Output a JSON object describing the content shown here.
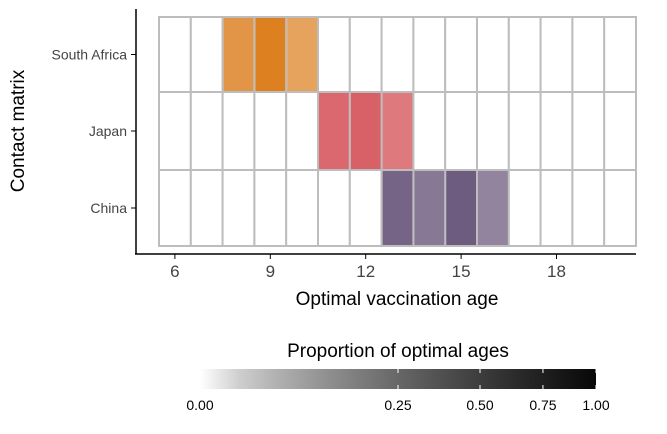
{
  "chart_data": {
    "type": "heatmap",
    "xlabel": "Optimal vaccination age",
    "ylabel": "Contact matrix",
    "x_categories": [
      6,
      7,
      8,
      9,
      10,
      11,
      12,
      13,
      14,
      15,
      16,
      17,
      18,
      19,
      20
    ],
    "x_ticks": [
      6,
      9,
      12,
      15,
      18
    ],
    "y_categories": [
      "South Africa",
      "Japan",
      "China"
    ],
    "grid": true,
    "series": [
      {
        "row": "South Africa",
        "color": "#dc8020",
        "cells": [
          {
            "age": 8,
            "value": 0.3
          },
          {
            "age": 9,
            "value": 0.5
          },
          {
            "age": 10,
            "value": 0.2
          }
        ]
      },
      {
        "row": "Japan",
        "color": "#d5535a",
        "cells": [
          {
            "age": 11,
            "value": 0.35
          },
          {
            "age": 12,
            "value": 0.4
          },
          {
            "age": 13,
            "value": 0.25
          }
        ]
      },
      {
        "row": "China",
        "color": "#5a456e",
        "cells": [
          {
            "age": 13,
            "value": 0.3
          },
          {
            "age": 14,
            "value": 0.2
          },
          {
            "age": 15,
            "value": 0.35
          },
          {
            "age": 16,
            "value": 0.15
          }
        ]
      }
    ],
    "legend": {
      "title": "Proportion of optimal ages",
      "position": "bottom",
      "scale": "sqrt",
      "range": [
        0,
        1
      ],
      "ticks": [
        0,
        0.25,
        0.5,
        0.75,
        1
      ],
      "tick_labels": [
        "0.00",
        "0.25",
        "0.50",
        "0.75",
        "1.00"
      ]
    }
  }
}
